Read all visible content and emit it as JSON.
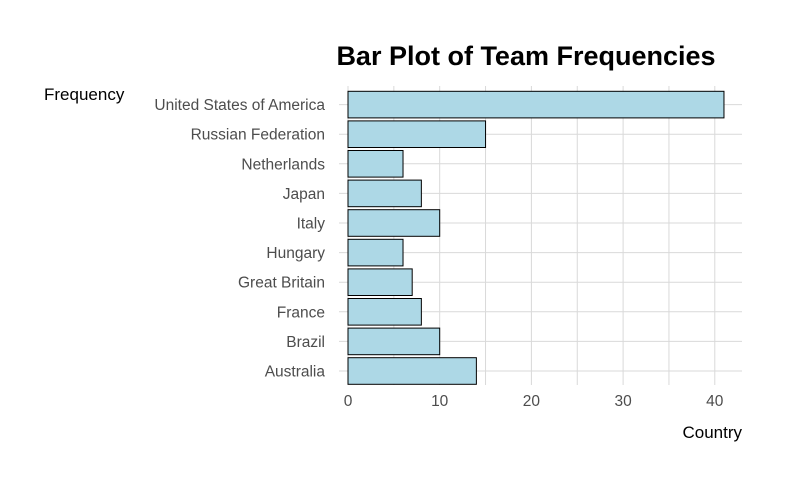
{
  "chart_data": {
    "type": "bar",
    "orientation": "horizontal",
    "title": "Bar Plot of Team Frequencies",
    "xlabel": "Country",
    "ylabel": "Frequency",
    "categories": [
      "Australia",
      "Brazil",
      "France",
      "Great Britain",
      "Hungary",
      "Italy",
      "Japan",
      "Netherlands",
      "Russian Federation",
      "United States of America"
    ],
    "values": [
      14,
      10,
      8,
      7,
      6,
      10,
      8,
      6,
      15,
      41
    ],
    "xlim": [
      0,
      43
    ],
    "xticks": [
      0,
      10,
      20,
      30,
      40
    ],
    "grid": true,
    "colors": {
      "bar_fill": "#add8e6",
      "bar_stroke": "#000000",
      "grid": "#d9d9d9"
    }
  }
}
